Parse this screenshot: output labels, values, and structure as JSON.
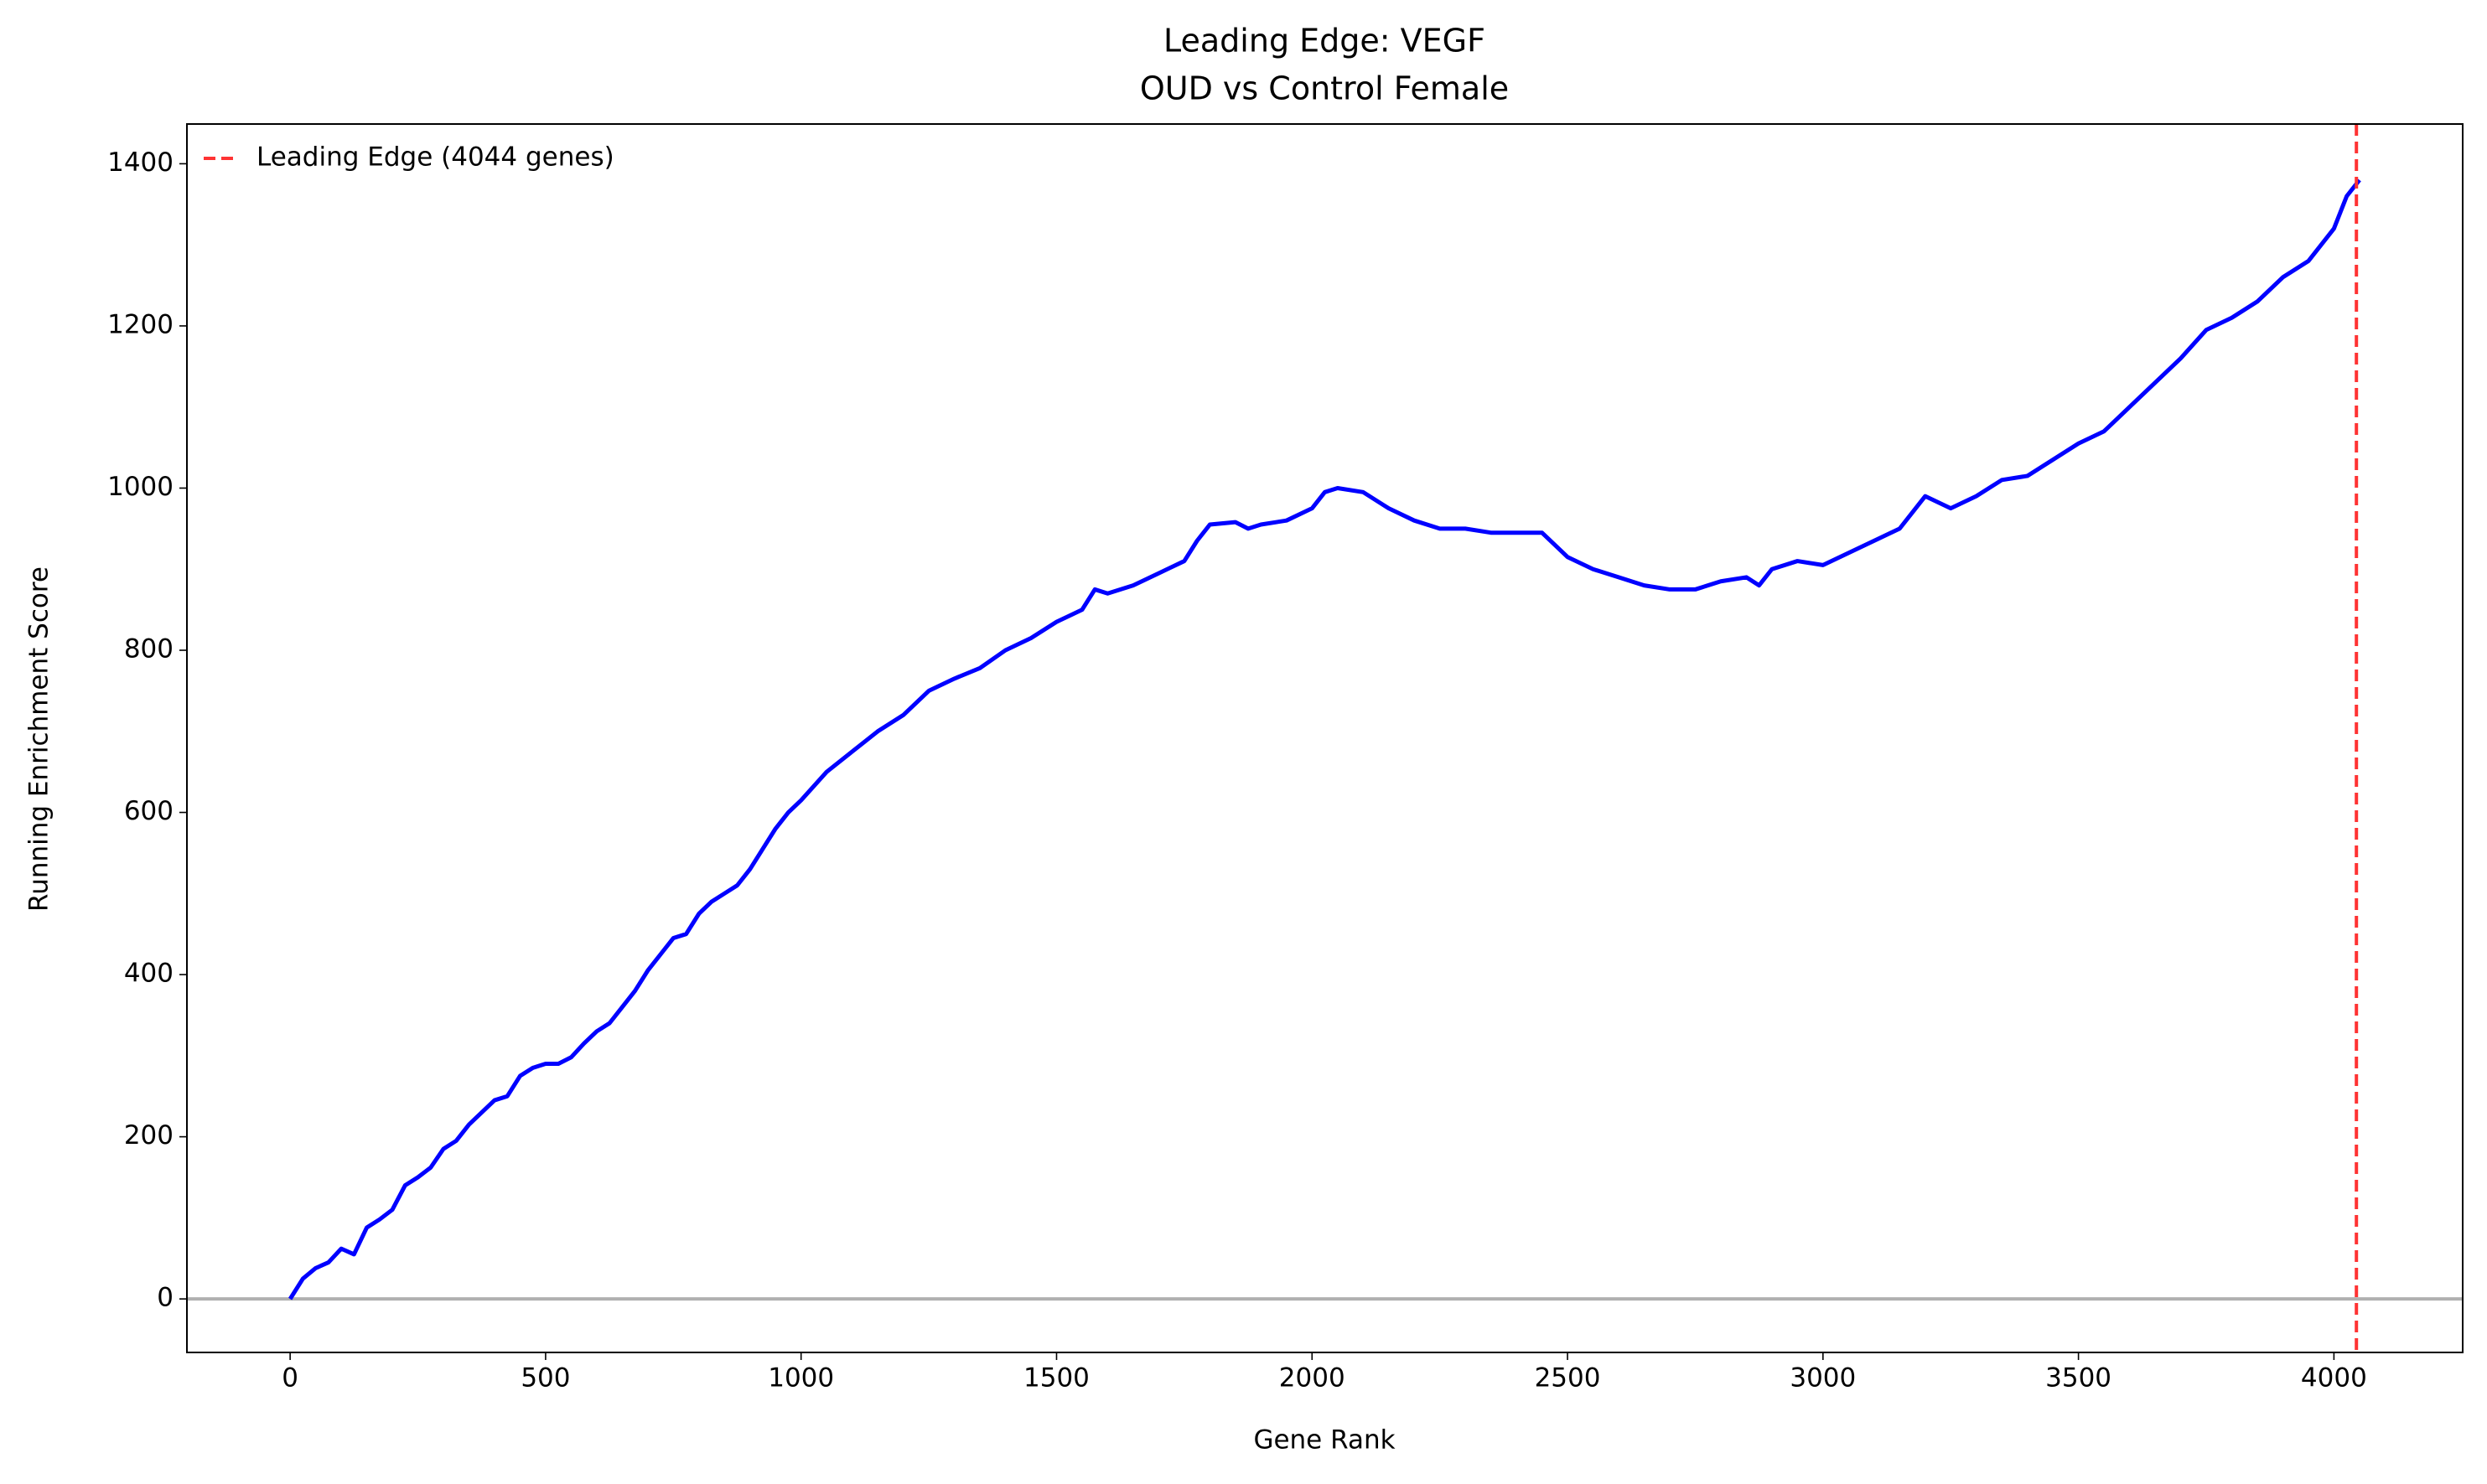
{
  "chart_data": {
    "type": "line",
    "title": "Leading Edge: VEGF",
    "subtitle": "OUD vs Control Female",
    "x_label": "Gene Rank",
    "y_label": "Running Enrichment Score",
    "x": [
      0,
      25,
      50,
      75,
      100,
      125,
      150,
      175,
      200,
      225,
      250,
      275,
      300,
      325,
      350,
      375,
      400,
      425,
      450,
      475,
      500,
      525,
      550,
      575,
      600,
      625,
      650,
      675,
      700,
      725,
      750,
      775,
      800,
      825,
      850,
      875,
      900,
      925,
      950,
      975,
      1000,
      1050,
      1100,
      1150,
      1200,
      1250,
      1300,
      1350,
      1400,
      1450,
      1500,
      1550,
      1575,
      1600,
      1650,
      1700,
      1750,
      1775,
      1800,
      1850,
      1875,
      1900,
      1950,
      2000,
      2025,
      2050,
      2100,
      2150,
      2200,
      2250,
      2300,
      2350,
      2400,
      2450,
      2500,
      2550,
      2600,
      2650,
      2700,
      2750,
      2800,
      2850,
      2875,
      2900,
      2950,
      3000,
      3050,
      3100,
      3150,
      3200,
      3250,
      3300,
      3350,
      3400,
      3450,
      3500,
      3550,
      3600,
      3650,
      3700,
      3750,
      3800,
      3850,
      3900,
      3950,
      4000,
      4025,
      4050
    ],
    "series": [
      {
        "color": "#0000ff",
        "values": [
          0,
          25,
          38,
          45,
          62,
          55,
          88,
          98,
          110,
          140,
          150,
          162,
          185,
          195,
          215,
          230,
          245,
          250,
          275,
          285,
          290,
          290,
          298,
          315,
          330,
          340,
          360,
          380,
          405,
          425,
          445,
          450,
          475,
          490,
          500,
          510,
          530,
          555,
          580,
          600,
          615,
          650,
          675,
          700,
          720,
          750,
          765,
          778,
          800,
          815,
          835,
          850,
          875,
          870,
          880,
          895,
          910,
          935,
          955,
          958,
          950,
          955,
          960,
          975,
          995,
          1000,
          995,
          975,
          960,
          950,
          950,
          945,
          945,
          945,
          915,
          900,
          890,
          880,
          875,
          875,
          885,
          890,
          880,
          900,
          910,
          905,
          920,
          935,
          950,
          990,
          975,
          990,
          1010,
          1015,
          1035,
          1055,
          1070,
          1100,
          1130,
          1160,
          1195,
          1210,
          1230,
          1260,
          1280,
          1320,
          1360,
          1380
        ]
      }
    ],
    "leading_edge": {
      "value": 4044,
      "label": "Leading Edge (4044 genes)",
      "color": "#ff3333"
    },
    "hline": {
      "value": 0,
      "color": "#b0b0b0"
    },
    "legend": "upper left",
    "xlim": [
      -202,
      4252
    ],
    "ylim": [
      -66,
      1449
    ],
    "xticks": [
      0,
      500,
      1000,
      1500,
      2000,
      2500,
      3000,
      3500,
      4000
    ],
    "yticks": [
      0,
      200,
      400,
      600,
      800,
      1000,
      1200,
      1400
    ]
  }
}
